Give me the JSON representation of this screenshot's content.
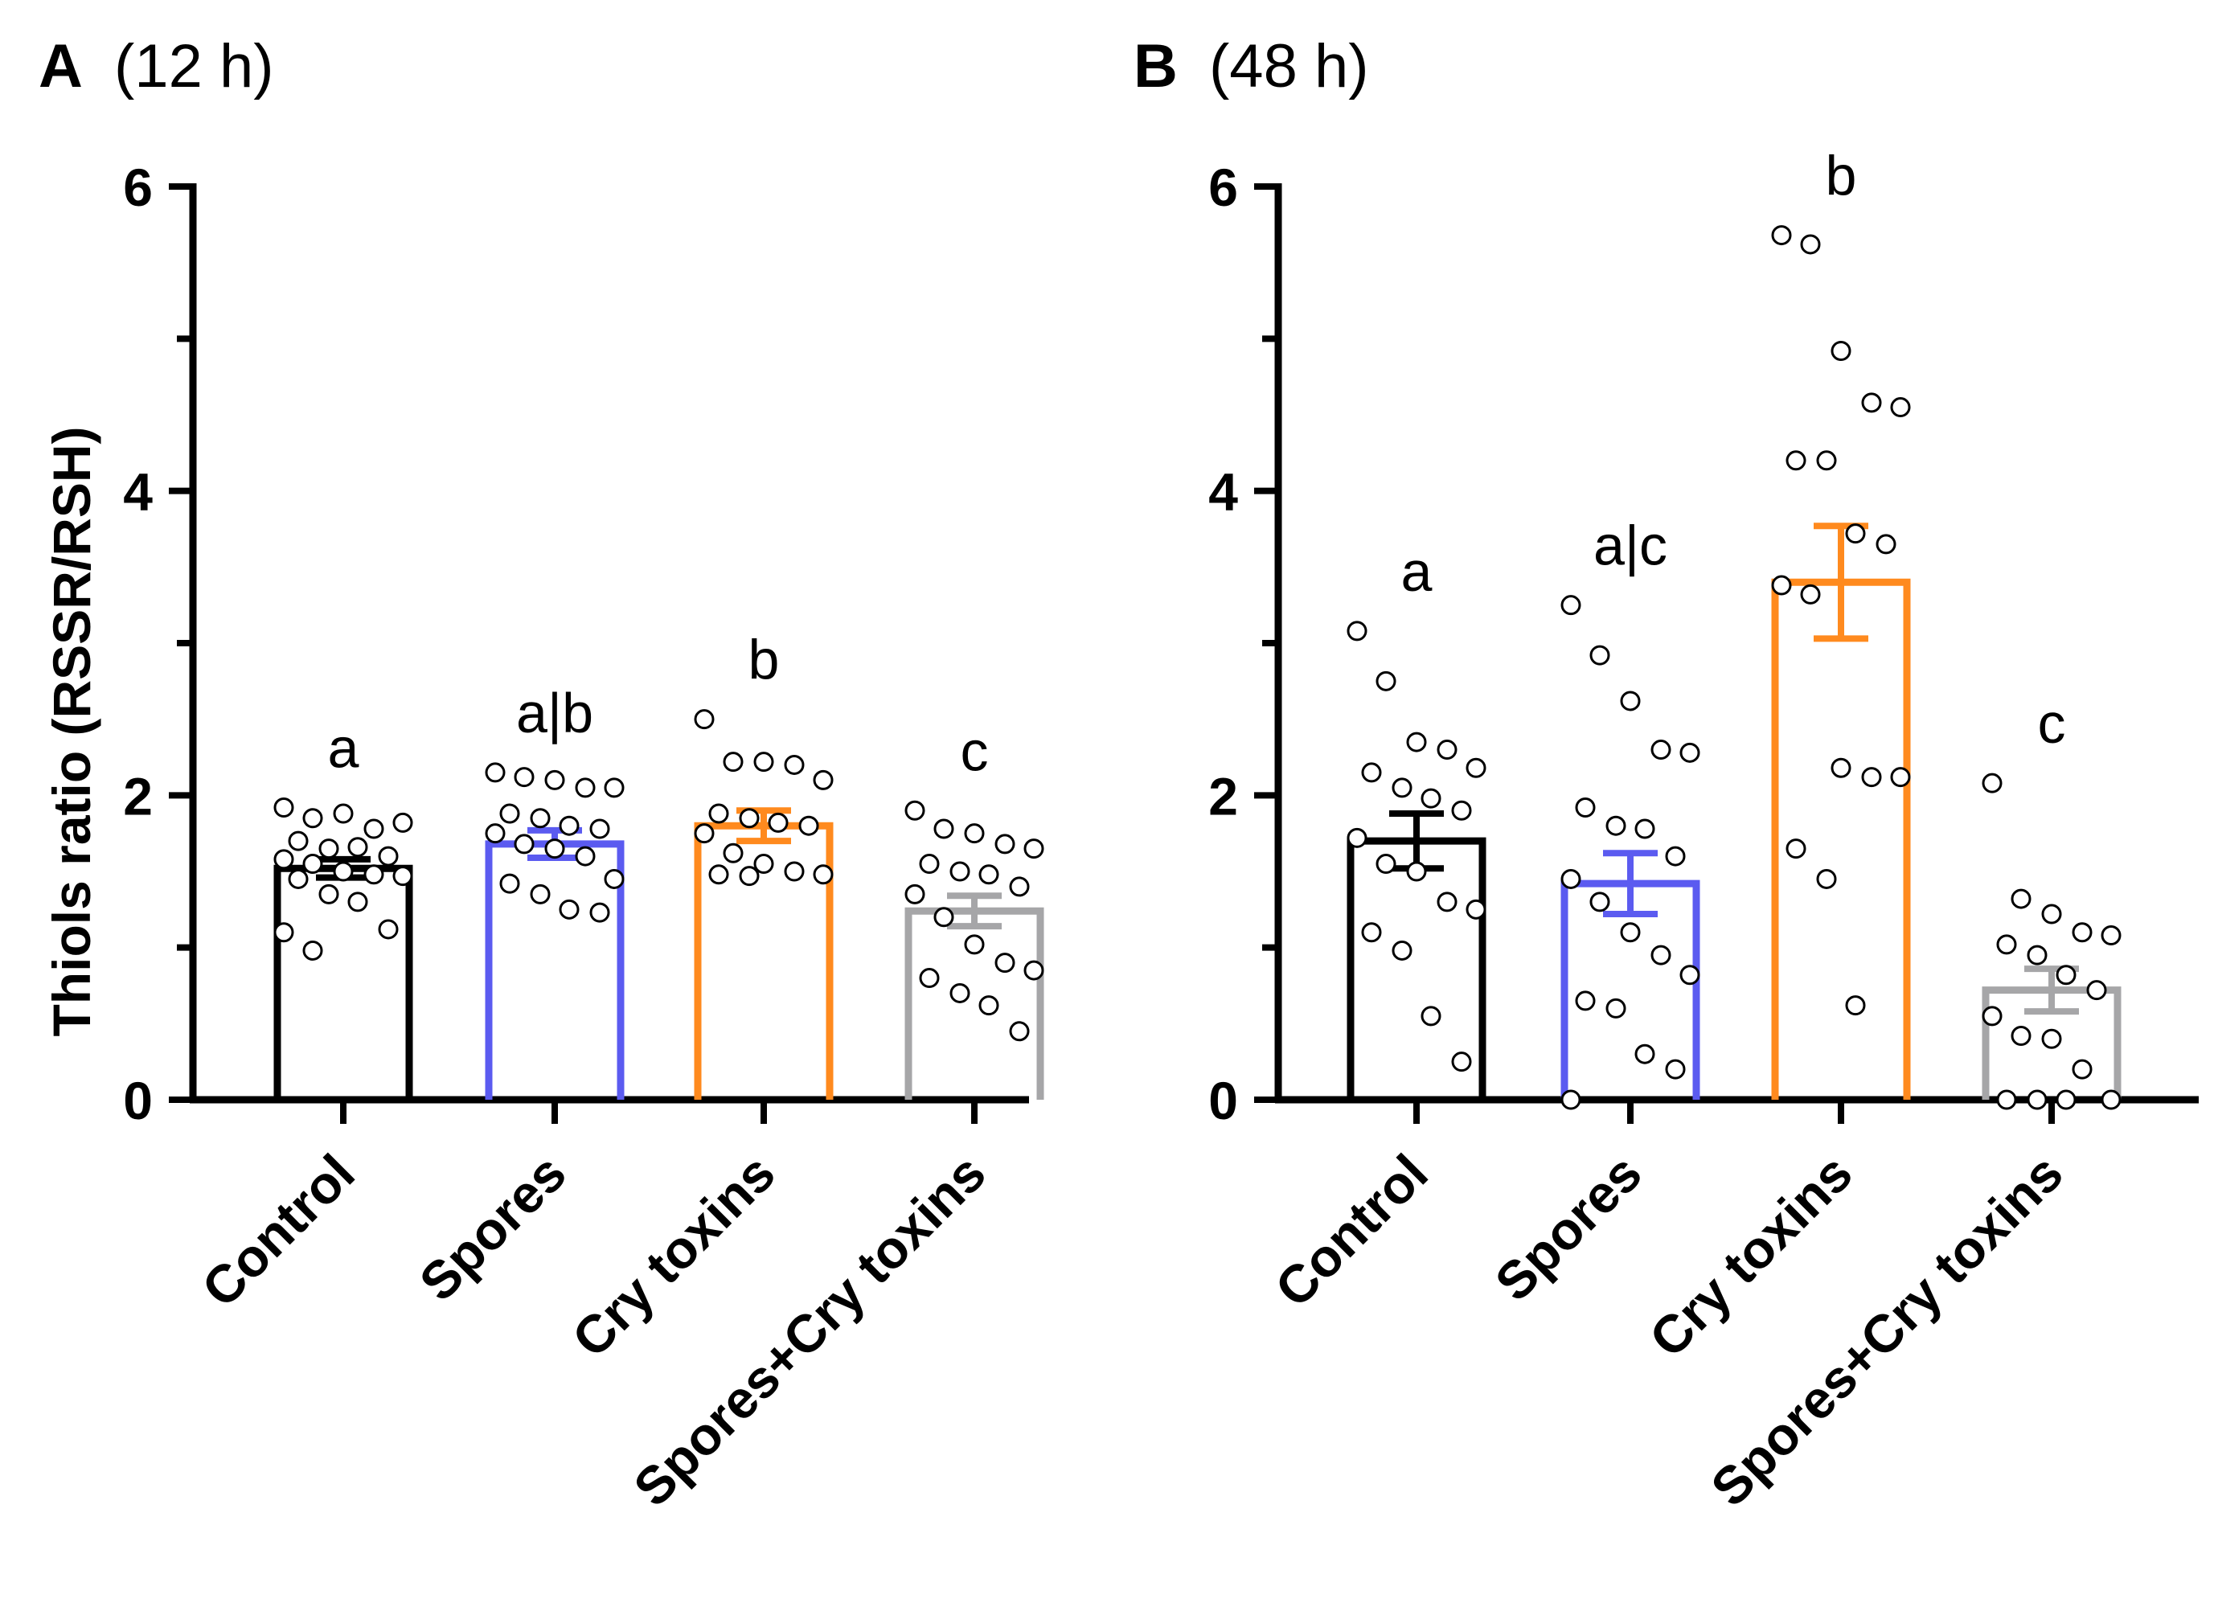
{
  "y_axis_title": "Thiols ratio (RSSR/RSH)",
  "chart_data": [
    {
      "type": "bar",
      "panel_letter": "A",
      "panel_time": "(12 h)",
      "ylabel": "Thiols ratio (RSSR/RSH)",
      "ylim": [
        0,
        6
      ],
      "yticks": [
        "0",
        "2",
        "4",
        "6"
      ],
      "categories": [
        "Control",
        "Spores",
        "Cry toxins",
        "Spores+Cry toxins"
      ],
      "colors": [
        "#000000",
        "#5b5bf0",
        "#ff8a1e",
        "#a6a6a8"
      ],
      "means": [
        1.52,
        1.68,
        1.8,
        1.24
      ],
      "sem": [
        0.06,
        0.09,
        0.1,
        0.1
      ],
      "significance": [
        "a",
        "a|b",
        "b",
        "c"
      ],
      "points": [
        [
          1.92,
          1.85,
          1.88,
          1.78,
          1.82,
          1.7,
          1.65,
          1.66,
          1.6,
          1.58,
          1.55,
          1.5,
          1.48,
          1.47,
          1.45,
          1.35,
          1.3,
          1.12,
          1.1,
          0.98
        ],
        [
          2.15,
          2.12,
          2.1,
          2.05,
          2.05,
          1.88,
          1.85,
          1.8,
          1.78,
          1.75,
          1.68,
          1.65,
          1.6,
          1.45,
          1.42,
          1.35,
          1.25,
          1.23
        ],
        [
          2.5,
          2.22,
          2.22,
          2.2,
          2.1,
          1.88,
          1.85,
          1.82,
          1.8,
          1.75,
          1.62,
          1.55,
          1.5,
          1.48,
          1.48,
          1.47
        ],
        [
          1.9,
          1.78,
          1.75,
          1.68,
          1.65,
          1.55,
          1.5,
          1.48,
          1.4,
          1.35,
          1.2,
          1.02,
          0.9,
          0.85,
          0.8,
          0.7,
          0.62,
          0.45
        ]
      ]
    },
    {
      "type": "bar",
      "panel_letter": "B",
      "panel_time": "(48 h)",
      "ylabel": "Thiols ratio (RSSR/RSH)",
      "ylim": [
        0,
        6
      ],
      "yticks": [
        "0",
        "2",
        "4",
        "6"
      ],
      "categories": [
        "Control",
        "Spores",
        "Cry toxins",
        "Spores+Cry toxins"
      ],
      "colors": [
        "#000000",
        "#5b5bf0",
        "#ff8a1e",
        "#a6a6a8"
      ],
      "means": [
        1.7,
        1.42,
        3.4,
        0.72
      ],
      "sem": [
        0.18,
        0.2,
        0.37,
        0.14
      ],
      "significance": [
        "a",
        "a|c",
        "b",
        "c"
      ],
      "points": [
        [
          3.08,
          2.75,
          2.35,
          2.3,
          2.18,
          2.15,
          2.05,
          1.98,
          1.9,
          1.72,
          1.55,
          1.5,
          1.3,
          1.25,
          1.1,
          0.98,
          0.55,
          0.25
        ],
        [
          3.25,
          2.92,
          2.62,
          2.3,
          2.28,
          1.92,
          1.8,
          1.78,
          1.6,
          1.45,
          1.3,
          1.1,
          0.95,
          0.82,
          0.65,
          0.6,
          0.3,
          0.2,
          0.0
        ],
        [
          5.68,
          5.62,
          4.92,
          4.58,
          4.55,
          4.2,
          4.2,
          3.72,
          3.65,
          3.38,
          3.32,
          2.18,
          2.12,
          2.12,
          1.65,
          1.45,
          0.62
        ],
        [
          2.08,
          1.32,
          1.22,
          1.1,
          1.08,
          1.02,
          0.95,
          0.82,
          0.72,
          0.55,
          0.42,
          0.4,
          0.2,
          0.0,
          0.0,
          0.0,
          0.0
        ]
      ]
    }
  ]
}
